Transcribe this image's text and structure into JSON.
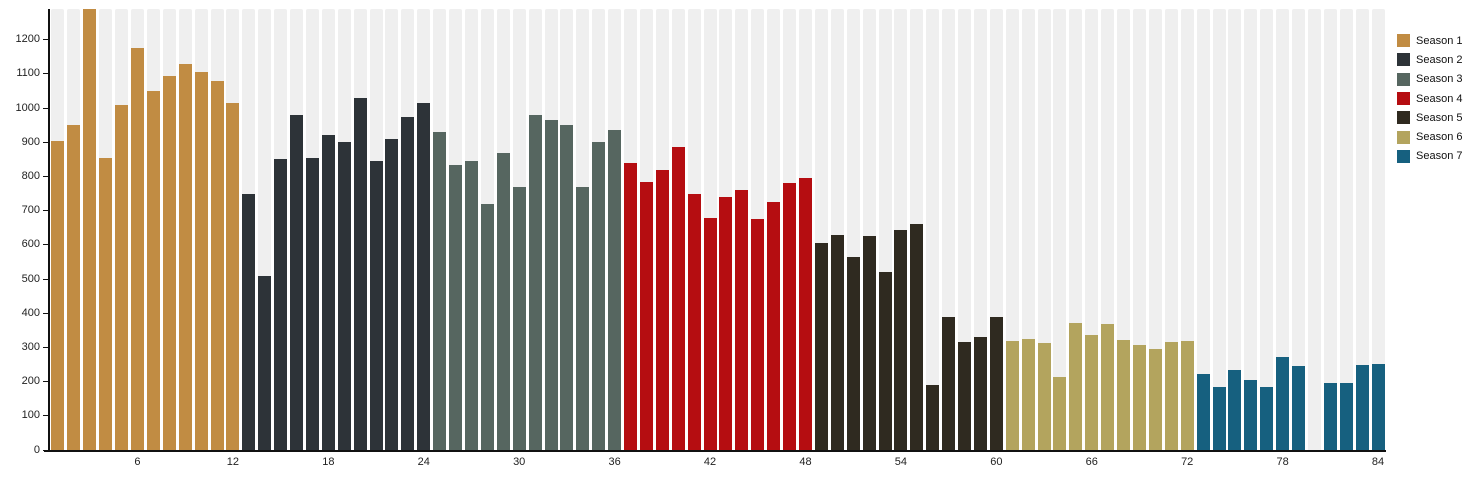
{
  "chart_data": {
    "type": "bar",
    "title": "",
    "xlabel": "",
    "ylabel": "",
    "x_domain": [
      1,
      84
    ],
    "ylim": [
      0,
      1290
    ],
    "y_ticks": [
      0,
      100,
      200,
      300,
      400,
      500,
      600,
      700,
      800,
      900,
      1000,
      1100,
      1200
    ],
    "x_ticks": [
      6,
      12,
      18,
      24,
      30,
      36,
      42,
      48,
      54,
      60,
      66,
      72,
      78,
      84
    ],
    "grid": "light column stripe behind every bar, no horizontal gridlines",
    "legend_position": "top-right",
    "notes": "Episode 3 bar is clipped at the top of the plot; episode 80 has no bar (missing value).",
    "series": [
      {
        "name": "Season 1",
        "color": "#c18c43",
        "start_episode": 1,
        "values": [
          905,
          950,
          1290,
          855,
          1010,
          1175,
          1050,
          1095,
          1130,
          1105,
          1080,
          1015
        ]
      },
      {
        "name": "Season 2",
        "color": "#2d3338",
        "start_episode": 13,
        "values": [
          750,
          510,
          850,
          980,
          855,
          920,
          900,
          1030,
          845,
          910,
          975,
          1015
        ]
      },
      {
        "name": "Season 3",
        "color": "#566660",
        "start_episode": 25,
        "values": [
          930,
          835,
          845,
          720,
          870,
          770,
          980,
          965,
          950,
          770,
          900,
          935
        ]
      },
      {
        "name": "Season 4",
        "color": "#b50d11",
        "start_episode": 37,
        "values": [
          840,
          785,
          820,
          885,
          750,
          680,
          740,
          760,
          675,
          725,
          780,
          795
        ]
      },
      {
        "name": "Season 5",
        "color": "#2f2a20",
        "start_episode": 49,
        "values": [
          605,
          630,
          565,
          625,
          520,
          645,
          660,
          190,
          390,
          315,
          330,
          390
        ]
      },
      {
        "name": "Season 6",
        "color": "#b3a45e",
        "start_episode": 61,
        "values": [
          320,
          325,
          312,
          215,
          372,
          337,
          370,
          323,
          308,
          295,
          316,
          320
        ]
      },
      {
        "name": "Season 7",
        "color": "#16607f",
        "start_episode": 73,
        "values": [
          223,
          183,
          233,
          205,
          183,
          272,
          245,
          null,
          196,
          196,
          248,
          253
        ]
      }
    ],
    "colors": {
      "column_stripe": "#efefef",
      "axis": "#111111",
      "background": "#ffffff",
      "tick_label": "#222222"
    }
  }
}
